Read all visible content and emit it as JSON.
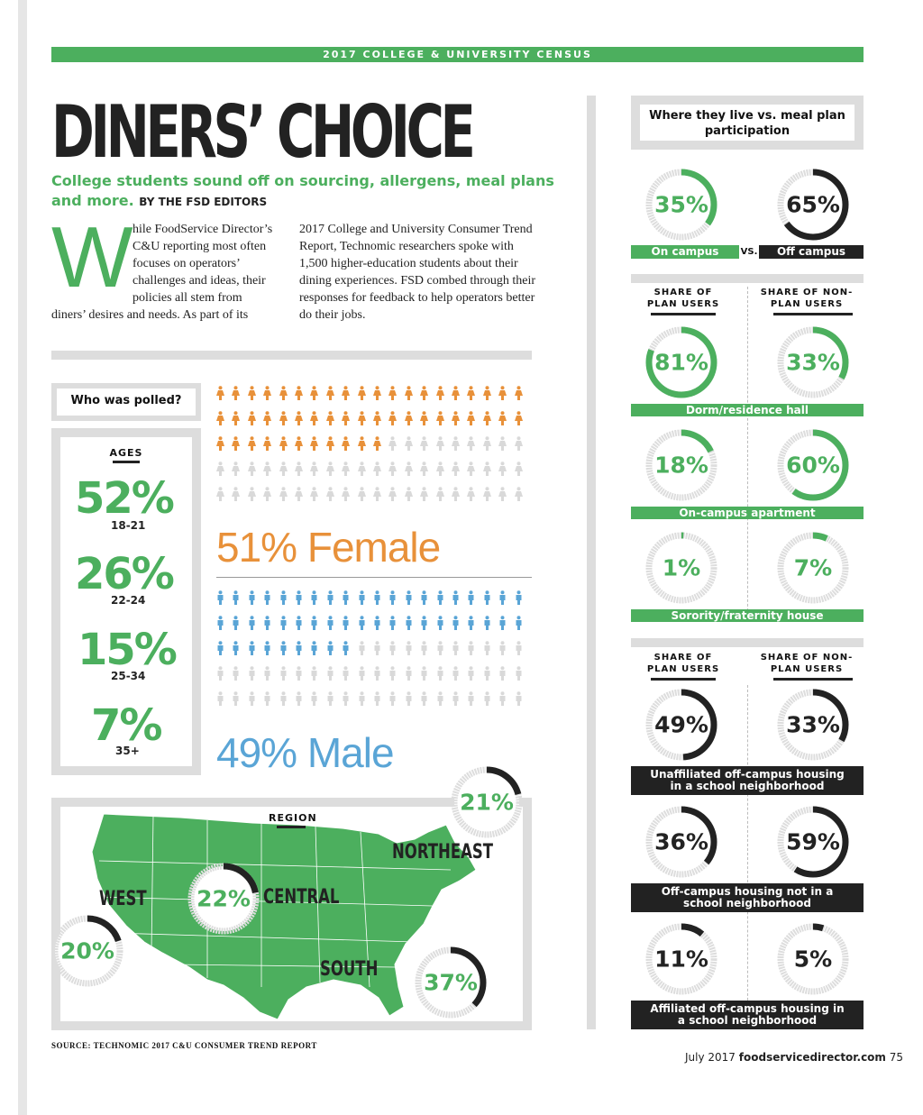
{
  "header": {
    "census_label": "2017 COLLEGE & UNIVERSITY CENSUS",
    "title": "DINERS’ CHOICE",
    "subtitle": "College students sound off on sourcing, allergens, meal plans and more.",
    "byline": "BY THE FSD EDITORS"
  },
  "intro": {
    "dropcap": "W",
    "col1_lines": [
      "hile FoodService Director’s",
      "C&U reporting most often",
      "focuses on operators’",
      "challenges and ideas, their",
      "policies all stem from"
    ],
    "col1_tail": "diners’ desires and needs. As part of its",
    "col2": "2017 College and University Consumer Trend Report, Technomic researchers spoke with 1,500 higher-education students about their dining experiences. FSD combed through their responses for feedback to help operators better do their jobs."
  },
  "polled": {
    "heading": "Who was polled?",
    "ages_heading": "AGES",
    "ages": [
      {
        "pct": "52%",
        "range": "18-21"
      },
      {
        "pct": "26%",
        "range": "22-24"
      },
      {
        "pct": "15%",
        "range": "25-34"
      },
      {
        "pct": "7%",
        "range": "35+"
      }
    ],
    "female_label": "51% Female",
    "male_label": "49% Male",
    "female_pct": 51,
    "male_pct": 49,
    "colors": {
      "female": "#e8913a",
      "male": "#5aa5d6",
      "empty": "#d9d9d9"
    }
  },
  "region": {
    "heading": "REGION",
    "items": [
      {
        "name": "WEST",
        "pct": "20%",
        "value": 20
      },
      {
        "name": "CENTRAL",
        "pct": "22%",
        "value": 22
      },
      {
        "name": "NORTHEAST",
        "pct": "21%",
        "value": 21
      },
      {
        "name": "SOUTH",
        "pct": "37%",
        "value": 37
      }
    ]
  },
  "source": "SOURCE: TECHNOMIC 2017 C&U CONSUMER TREND REPORT",
  "live": {
    "heading": "Where they live vs. meal plan participation",
    "on_campus": {
      "pct": "35%",
      "value": 35,
      "label": "On campus"
    },
    "vs": "VS.",
    "off_campus": {
      "pct": "65%",
      "value": 65,
      "label": "Off campus"
    },
    "plan_head": "SHARE OF PLAN USERS",
    "nonplan_head": "SHARE OF NON-PLAN USERS",
    "on_campus_types": [
      {
        "label": "Dorm/residence hall",
        "plan": "81%",
        "plan_v": 81,
        "non": "33%",
        "non_v": 33
      },
      {
        "label": "On-campus apartment",
        "plan": "18%",
        "plan_v": 18,
        "non": "60%",
        "non_v": 60
      },
      {
        "label": "Sorority/fraternity house",
        "plan": "1%",
        "plan_v": 1,
        "non": "7%",
        "non_v": 7
      }
    ],
    "off_campus_types": [
      {
        "label": "Unaffiliated off-campus housing in a school neighborhood",
        "plan": "49%",
        "plan_v": 49,
        "non": "33%",
        "non_v": 33
      },
      {
        "label": "Off-campus housing not in a school neighborhood",
        "plan": "36%",
        "plan_v": 36,
        "non": "59%",
        "non_v": 59
      },
      {
        "label": "Affiliated off-campus housing in a school neighborhood",
        "plan": "11%",
        "plan_v": 11,
        "non": "5%",
        "non_v": 5
      }
    ],
    "colors": {
      "green": "#4caf5e",
      "black": "#222222",
      "ring_bg": "#dddddd"
    }
  },
  "footer": {
    "date": "July 2017",
    "site": "foodservicedirector.com",
    "page": "75"
  }
}
